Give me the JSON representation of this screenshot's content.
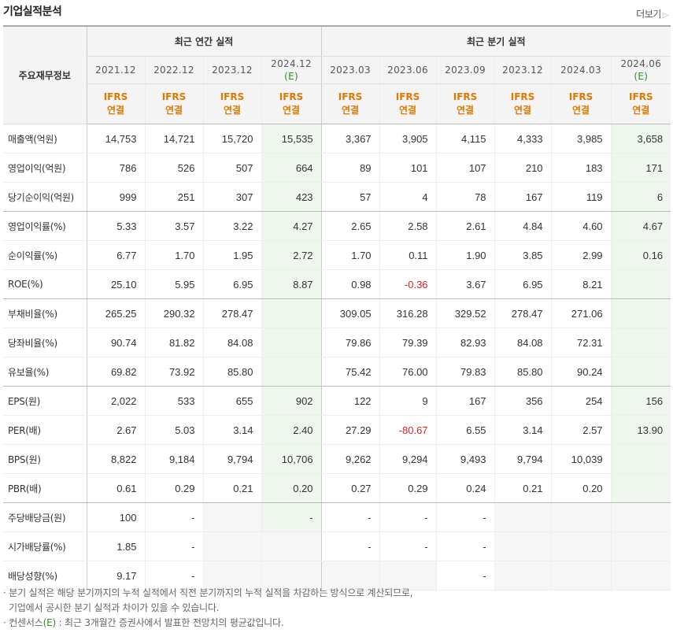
{
  "title": "기업실적분석",
  "more_label": "더보기",
  "label_header": "주요재무정보",
  "groups": {
    "annual": "최근 연간 실적",
    "quarter": "최근 분기 실적"
  },
  "periods": [
    {
      "p": "2021.12",
      "e": ""
    },
    {
      "p": "2022.12",
      "e": ""
    },
    {
      "p": "2023.12",
      "e": ""
    },
    {
      "p": "2024.12",
      "e": "(E)"
    },
    {
      "p": "2023.03",
      "e": ""
    },
    {
      "p": "2023.06",
      "e": ""
    },
    {
      "p": "2023.09",
      "e": ""
    },
    {
      "p": "2023.12",
      "e": ""
    },
    {
      "p": "2024.03",
      "e": ""
    },
    {
      "p": "2024.06",
      "e": "(E)"
    }
  ],
  "std_top": "IFRS",
  "std_bottom": "연결",
  "rows": [
    {
      "label": "매출액(억원)",
      "values": [
        "14,753",
        "14,721",
        "15,720",
        "15,535",
        "3,367",
        "3,905",
        "4,115",
        "4,333",
        "3,985",
        "3,658"
      ]
    },
    {
      "label": "영업이익(억원)",
      "values": [
        "786",
        "526",
        "507",
        "664",
        "89",
        "101",
        "107",
        "210",
        "183",
        "171"
      ]
    },
    {
      "label": "당기순이익(억원)",
      "values": [
        "999",
        "251",
        "307",
        "423",
        "57",
        "4",
        "78",
        "167",
        "119",
        "6"
      ]
    },
    {
      "label": "영업이익률(%)",
      "values": [
        "5.33",
        "3.57",
        "3.22",
        "4.27",
        "2.65",
        "2.58",
        "2.61",
        "4.84",
        "4.60",
        "4.67"
      ]
    },
    {
      "label": "순이익률(%)",
      "values": [
        "6.77",
        "1.70",
        "1.95",
        "2.72",
        "1.70",
        "0.11",
        "1.90",
        "3.85",
        "2.99",
        "0.16"
      ]
    },
    {
      "label": "ROE(%)",
      "values": [
        "25.10",
        "5.95",
        "6.95",
        "8.87",
        "0.98",
        "-0.36",
        "3.67",
        "6.95",
        "8.21",
        ""
      ]
    },
    {
      "label": "부채비율(%)",
      "values": [
        "265.25",
        "290.32",
        "278.47",
        "",
        "309.05",
        "316.28",
        "329.52",
        "278.47",
        "271.06",
        ""
      ]
    },
    {
      "label": "당좌비율(%)",
      "values": [
        "90.74",
        "81.82",
        "84.08",
        "",
        "79.86",
        "79.39",
        "82.93",
        "84.08",
        "72.31",
        ""
      ]
    },
    {
      "label": "유보율(%)",
      "values": [
        "69.82",
        "73.92",
        "85.80",
        "",
        "75.42",
        "76.00",
        "79.83",
        "85.80",
        "90.24",
        ""
      ]
    },
    {
      "label": "EPS(원)",
      "values": [
        "2,022",
        "533",
        "655",
        "902",
        "122",
        "9",
        "167",
        "356",
        "254",
        "156"
      ]
    },
    {
      "label": "PER(배)",
      "values": [
        "2.67",
        "5.03",
        "3.14",
        "2.40",
        "27.29",
        "-80.67",
        "6.55",
        "3.14",
        "2.57",
        "13.90"
      ]
    },
    {
      "label": "BPS(원)",
      "values": [
        "8,822",
        "9,184",
        "9,794",
        "10,706",
        "9,262",
        "9,294",
        "9,493",
        "9,794",
        "10,039",
        ""
      ]
    },
    {
      "label": "PBR(배)",
      "values": [
        "0.61",
        "0.29",
        "0.21",
        "0.20",
        "0.27",
        "0.29",
        "0.24",
        "0.21",
        "0.20",
        ""
      ]
    },
    {
      "label": "주당배당금(원)",
      "values": [
        "100",
        "-",
        "",
        "-",
        "-",
        "-",
        "-",
        "",
        "",
        ""
      ]
    },
    {
      "label": "시가배당률(%)",
      "values": [
        "1.85",
        "-",
        "",
        "",
        "-",
        "-",
        "-",
        "",
        "",
        ""
      ]
    },
    {
      "label": "배당성향(%)",
      "values": [
        "9.17",
        "-",
        "",
        "",
        "",
        "",
        "-",
        "",
        "",
        ""
      ]
    }
  ],
  "notes": {
    "line1": "· 분기 실적은 해당 분기까지의 누적 실적에서 직전 분기까지의 누적 실적을 차감하는 방식으로 계산되므로,",
    "line2": "기업에서 공시한 분기 실적과 차이가 있을 수 있습니다.",
    "line3_prefix": "· 컨센서스",
    "line3_e": "(E)",
    "line3_suffix": " : 최근 3개월간 증권사에서 발표한 전망치의 평균값입니다."
  },
  "colors": {
    "accent": "#e07800",
    "estimate_bg": "#eef6ee",
    "estimate_text": "#2e8b2e",
    "negative": "#dd2222"
  }
}
